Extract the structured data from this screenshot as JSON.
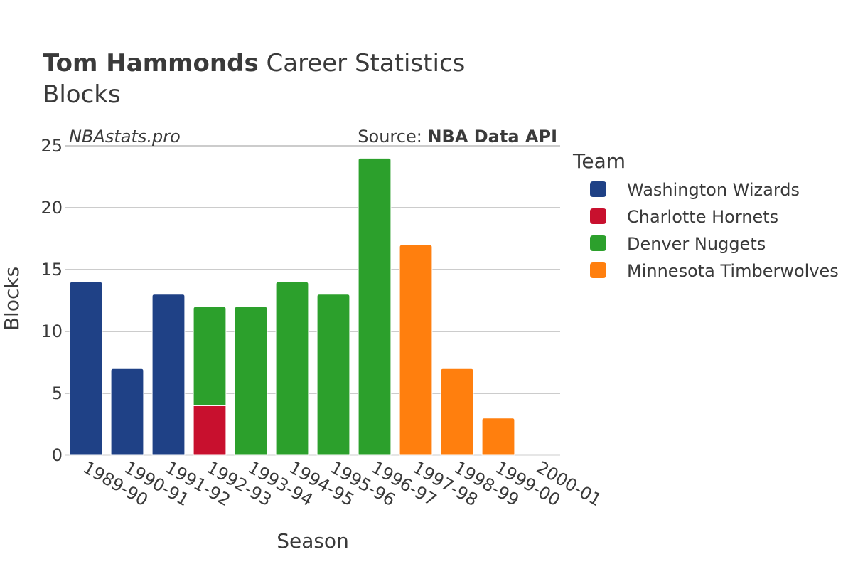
{
  "header": {
    "title_bold": "Tom Hammonds",
    "title_rest": " Career Statistics",
    "subtitle": "Blocks"
  },
  "watermark": {
    "site": "NBAstats.pro",
    "source_prefix": "Source: ",
    "source_name": "NBA Data API"
  },
  "colors": {
    "Washington Wizards": "#1f4186",
    "Charlotte Hornets": "#c8102e",
    "Denver Nuggets": "#2ca02c",
    "Minnesota Timberwolves": "#ff7f0e",
    "grid": "#999999",
    "text": "#3a3a3a"
  },
  "chart_data": {
    "type": "bar",
    "stacked": true,
    "xlabel": "Season",
    "ylabel": "Blocks",
    "ylim": [
      0,
      25
    ],
    "yticks": [
      0,
      5,
      10,
      15,
      20,
      25
    ],
    "grid": true,
    "legend_title": "Team",
    "legend_position": "right",
    "categories": [
      "1989-90",
      "1990-91",
      "1991-92",
      "1992-93",
      "1993-94",
      "1994-95",
      "1995-96",
      "1996-97",
      "1997-98",
      "1998-99",
      "1999-00",
      "2000-01"
    ],
    "series": [
      {
        "name": "Washington Wizards",
        "values": [
          14,
          7,
          13,
          0,
          0,
          0,
          0,
          0,
          0,
          0,
          0,
          0
        ]
      },
      {
        "name": "Charlotte Hornets",
        "values": [
          0,
          0,
          0,
          4,
          0,
          0,
          0,
          0,
          0,
          0,
          0,
          0
        ]
      },
      {
        "name": "Denver Nuggets",
        "values": [
          0,
          0,
          0,
          8,
          12,
          14,
          13,
          24,
          0,
          0,
          0,
          0
        ]
      },
      {
        "name": "Minnesota Timberwolves",
        "values": [
          0,
          0,
          0,
          0,
          0,
          0,
          0,
          0,
          17,
          7,
          3,
          0
        ]
      }
    ]
  }
}
